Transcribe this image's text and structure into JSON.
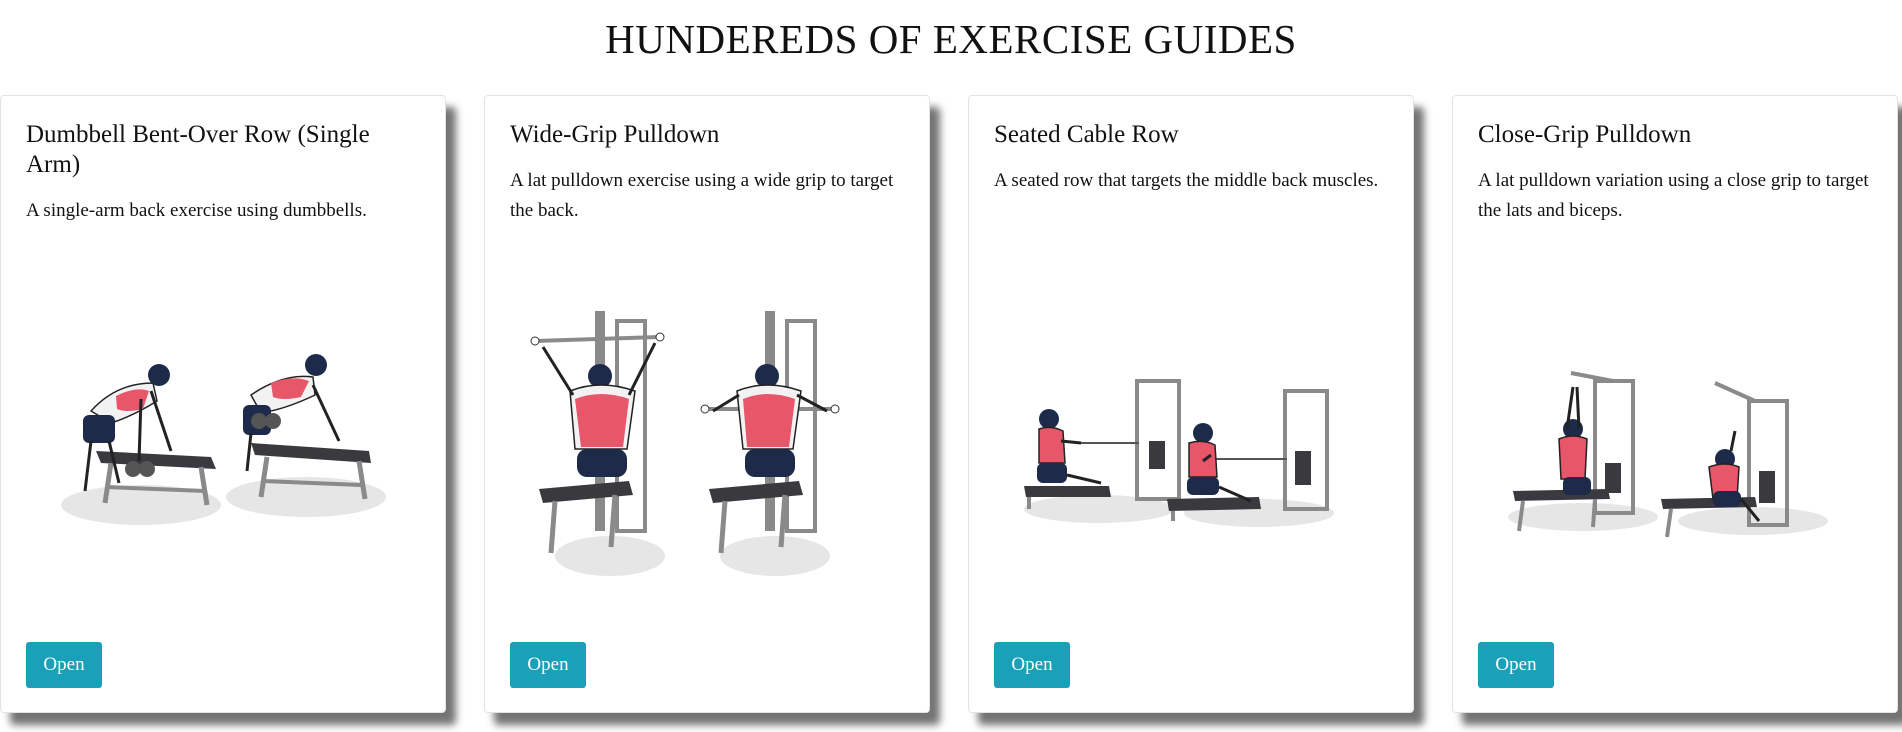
{
  "page": {
    "heading": "HUNDEREDS OF EXERCISE GUIDES"
  },
  "colors": {
    "button": "#1aa0b8",
    "muscle": "#e8566a",
    "equipment": "#3a3a3e",
    "shorts": "#1d2a4a"
  },
  "cards": [
    {
      "title": "Dumbbell Bent-Over Row (Single Arm)",
      "description": "A single-arm back exercise using dumbbells.",
      "button_label": "Open",
      "illustration": "dumbbell-row-illustration"
    },
    {
      "title": "Wide-Grip Pulldown",
      "description": "A lat pulldown exercise using a wide grip to target the back.",
      "button_label": "Open",
      "illustration": "wide-grip-pulldown-illustration"
    },
    {
      "title": "Seated Cable Row",
      "description": "A seated row that targets the middle back muscles.",
      "button_label": "Open",
      "illustration": "seated-cable-row-illustration"
    },
    {
      "title": "Close-Grip Pulldown",
      "description": "A lat pulldown variation using a close grip to target the lats and biceps.",
      "button_label": "Open",
      "illustration": "close-grip-pulldown-illustration"
    }
  ]
}
